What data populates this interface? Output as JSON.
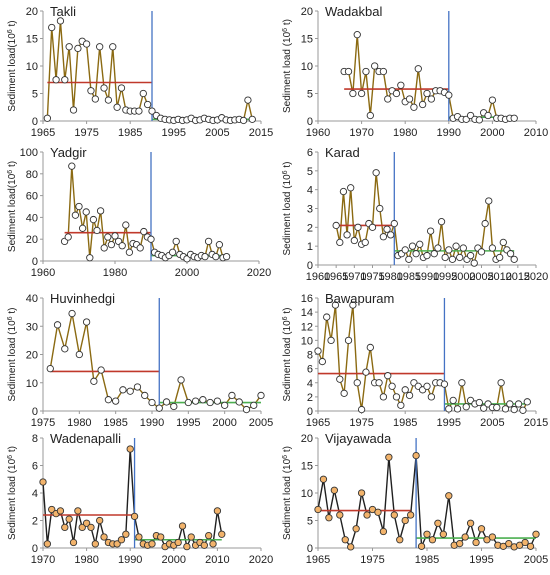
{
  "colors": {
    "series_line": "#8B6A12",
    "series_line_dark": "#202020",
    "marker_edge": "#333333",
    "marker_fill_light": "#ffffff",
    "marker_fill_orange": "#f2b36b",
    "pre_mean_line": "#c0392b",
    "post_mean_line": "#4caf50",
    "change_point_line": "#4472c4",
    "axis": "#999999",
    "text": "#222222"
  },
  "chart_data": [
    {
      "type": "line",
      "title": "Takli",
      "ylabel_main": "Sediment load(10",
      "ylabel_sup": "6",
      "ylabel_tail": " t)",
      "xlim": [
        1965,
        2015
      ],
      "ylim": [
        0,
        20
      ],
      "xticks": [
        1965,
        1975,
        1985,
        1995,
        2005,
        2015
      ],
      "yticks": [
        0,
        5,
        10,
        15,
        20
      ],
      "marker_style": "open",
      "change_point": 1990,
      "pre_mean": {
        "x": [
          1966,
          1990
        ],
        "y": 7
      },
      "post_mean": {
        "x": [
          1990,
          2013
        ],
        "y": 0.3
      },
      "x": [
        1966,
        1967,
        1968,
        1969,
        1970,
        1971,
        1972,
        1973,
        1974,
        1975,
        1976,
        1977,
        1978,
        1979,
        1980,
        1981,
        1982,
        1983,
        1984,
        1985,
        1986,
        1987,
        1988,
        1989,
        1990,
        1991,
        1992,
        1993,
        1994,
        1995,
        1996,
        1997,
        1998,
        1999,
        2000,
        2001,
        2002,
        2003,
        2004,
        2005,
        2006,
        2007,
        2008,
        2009,
        2010,
        2011,
        2012,
        2013
      ],
      "y": [
        0.5,
        17,
        7.5,
        18.2,
        7.5,
        13.5,
        2,
        13.2,
        14.5,
        14,
        5.5,
        4,
        13.5,
        6,
        3.8,
        13.5,
        2.5,
        6,
        2,
        1.8,
        1.8,
        1.8,
        5,
        3,
        1.8,
        1,
        0.5,
        0.3,
        0.2,
        0.1,
        0.3,
        0.1,
        0.2,
        0.5,
        0.1,
        0.2,
        0.5,
        0.3,
        0.1,
        0.2,
        0.6,
        0.2,
        0.1,
        0.2,
        0.3,
        0.1,
        3.8,
        0.3
      ]
    },
    {
      "type": "line",
      "title": "Wadakbal",
      "ylabel_main": "Sediment load (10",
      "ylabel_sup": "6",
      "ylabel_tail": " t)",
      "xlim": [
        1960,
        2010
      ],
      "ylim": [
        0,
        20
      ],
      "xticks": [
        1960,
        1970,
        1980,
        1990,
        2000,
        2010
      ],
      "yticks": [
        0,
        5,
        10,
        15,
        20
      ],
      "marker_style": "open",
      "change_point": 1990,
      "pre_mean": {
        "x": [
          1966,
          1990
        ],
        "y": 5.8
      },
      "post_mean": {
        "x": [
          1990,
          2005
        ],
        "y": 0.7
      },
      "x": [
        1966,
        1967,
        1968,
        1969,
        1970,
        1971,
        1972,
        1973,
        1974,
        1975,
        1976,
        1977,
        1978,
        1979,
        1980,
        1981,
        1982,
        1983,
        1984,
        1985,
        1986,
        1987,
        1988,
        1989,
        1990,
        1991,
        1992,
        1993,
        1994,
        1995,
        1996,
        1997,
        1998,
        1999,
        2000,
        2001,
        2002,
        2003,
        2004,
        2005
      ],
      "y": [
        9,
        9,
        5,
        15.7,
        5,
        9,
        1,
        10,
        9,
        9,
        4,
        5.5,
        5,
        6.5,
        3.5,
        4,
        2.5,
        9.5,
        3,
        5,
        4,
        5.5,
        5.5,
        5.2,
        4.7,
        0.5,
        0.8,
        0.3,
        0.3,
        1,
        0.3,
        0.2,
        1.5,
        1,
        3.8,
        0.5,
        0.5,
        0.3,
        0.5,
        0.5
      ]
    },
    {
      "type": "line",
      "title": "Yadgir",
      "ylabel_main": "Sediment load(10",
      "ylabel_sup": "6",
      "ylabel_tail": " t)",
      "xlim": [
        1960,
        2020
      ],
      "ylim": [
        0,
        100
      ],
      "xticks": [
        1960,
        1980,
        2000,
        2020
      ],
      "yticks": [
        0,
        20,
        40,
        60,
        80,
        100
      ],
      "marker_style": "open",
      "change_point": 1990,
      "pre_mean": {
        "x": [
          1966,
          1990
        ],
        "y": 26
      },
      "post_mean": {
        "x": [
          1990,
          2011
        ],
        "y": 5
      },
      "x": [
        1966,
        1967,
        1968,
        1969,
        1970,
        1971,
        1972,
        1973,
        1974,
        1975,
        1976,
        1977,
        1978,
        1979,
        1980,
        1981,
        1982,
        1983,
        1984,
        1985,
        1986,
        1987,
        1988,
        1989,
        1990,
        1991,
        1992,
        1993,
        1994,
        1995,
        1996,
        1997,
        1998,
        1999,
        2000,
        2001,
        2002,
        2003,
        2004,
        2005,
        2006,
        2007,
        2008,
        2009,
        2010,
        2011
      ],
      "y": [
        18,
        22,
        87,
        42,
        50,
        30,
        45,
        3,
        38,
        28,
        46,
        12,
        22,
        15,
        23,
        18,
        14,
        33,
        8,
        16,
        15,
        12,
        27,
        22,
        20,
        8,
        6,
        5,
        3,
        5,
        8,
        18,
        6,
        4,
        2,
        6,
        4,
        3,
        5,
        4,
        18,
        6,
        4,
        15,
        3,
        4
      ]
    },
    {
      "type": "line",
      "title": "Karad",
      "ylabel_main": "Sediment load (10",
      "ylabel_sup": "6",
      "ylabel_tail": " t)",
      "xlim": [
        1960,
        2020
      ],
      "ylim": [
        0,
        6
      ],
      "xticks": [
        1960,
        1965,
        1970,
        1975,
        1980,
        1985,
        1990,
        1995,
        2000,
        2005,
        2010,
        2015,
        2020
      ],
      "yticks": [
        0,
        1,
        2,
        3,
        4,
        5,
        6
      ],
      "marker_style": "open",
      "change_point": 1981,
      "pre_mean": {
        "x": [
          1965,
          1981
        ],
        "y": 2.1
      },
      "post_mean": {
        "x": [
          1981,
          2014
        ],
        "y": 0.75
      },
      "x": [
        1965,
        1966,
        1967,
        1968,
        1969,
        1970,
        1971,
        1972,
        1973,
        1974,
        1975,
        1976,
        1977,
        1978,
        1979,
        1980,
        1981,
        1982,
        1983,
        1984,
        1985,
        1986,
        1987,
        1988,
        1989,
        1990,
        1991,
        1992,
        1993,
        1994,
        1995,
        1996,
        1997,
        1998,
        1999,
        2000,
        2001,
        2002,
        2003,
        2004,
        2005,
        2006,
        2007,
        2008,
        2009,
        2010,
        2011,
        2012,
        2013,
        2014
      ],
      "y": [
        2.1,
        1.2,
        3.9,
        1.6,
        4.1,
        1.3,
        2.0,
        1.1,
        1.2,
        2.2,
        2.0,
        4.9,
        3.0,
        1.5,
        1.9,
        1.6,
        2.2,
        0.5,
        0.6,
        0.8,
        0.3,
        1.0,
        0.6,
        1.1,
        0.4,
        0.5,
        1.8,
        0.6,
        0.9,
        2.3,
        0.4,
        0.8,
        0.3,
        1.0,
        0.4,
        0.9,
        0.3,
        0.5,
        0.1,
        0.9,
        0.7,
        2.2,
        3.4,
        0.9,
        0.3,
        0.4,
        1.2,
        0.8,
        0.6,
        0.3
      ]
    },
    {
      "type": "line",
      "title": "Huvinhedgi",
      "ylabel_main": "Sediment load (10",
      "ylabel_sup": "6",
      "ylabel_tail": " t)",
      "xlim": [
        1975,
        2005
      ],
      "ylim": [
        0,
        40
      ],
      "xticks": [
        1975,
        1980,
        1985,
        1990,
        1995,
        2000,
        2005
      ],
      "yticks": [
        0,
        10,
        20,
        30,
        40
      ],
      "marker_style": "open",
      "change_point": 1991,
      "pre_mean": {
        "x": [
          1976,
          1991
        ],
        "y": 14
      },
      "post_mean": {
        "x": [
          1991,
          2005
        ],
        "y": 3
      },
      "x": [
        1976,
        1977,
        1978,
        1979,
        1980,
        1981,
        1982,
        1983,
        1984,
        1985,
        1986,
        1987,
        1988,
        1989,
        1990,
        1991,
        1992,
        1993,
        1994,
        1995,
        1996,
        1997,
        1998,
        1999,
        2000,
        2001,
        2002,
        2003,
        2004,
        2005
      ],
      "y": [
        15,
        30.5,
        22,
        34.5,
        20,
        31.5,
        10.5,
        14.5,
        4,
        3.5,
        7.5,
        7,
        8.5,
        5.5,
        3,
        1,
        3.2,
        1.6,
        11,
        3,
        3.5,
        4,
        3,
        3.5,
        2,
        5.5,
        3.2,
        0.5,
        2,
        5.5
      ]
    },
    {
      "type": "line",
      "title": "Bawapuram",
      "ylabel_main": "Sediment load (10",
      "ylabel_sup": "6",
      "ylabel_tail": " t)",
      "xlim": [
        1965,
        2015
      ],
      "ylim": [
        0,
        16
      ],
      "xticks": [
        1965,
        1975,
        1985,
        1995,
        2005,
        2015
      ],
      "yticks": [
        0,
        2,
        4,
        6,
        8,
        10,
        12,
        14,
        16
      ],
      "marker_style": "open",
      "change_point": 1994,
      "pre_mean": {
        "x": [
          1965,
          1994
        ],
        "y": 5.3
      },
      "post_mean": {
        "x": [
          1994,
          2013
        ],
        "y": 1.0
      },
      "x": [
        1965,
        1966,
        1967,
        1968,
        1969,
        1970,
        1971,
        1972,
        1973,
        1974,
        1975,
        1976,
        1977,
        1978,
        1979,
        1980,
        1981,
        1982,
        1983,
        1984,
        1985,
        1986,
        1987,
        1988,
        1989,
        1990,
        1991,
        1992,
        1993,
        1994,
        1995,
        1996,
        1997,
        1998,
        1999,
        2000,
        2001,
        2002,
        2003,
        2004,
        2005,
        2006,
        2007,
        2008,
        2009,
        2010,
        2011,
        2012,
        2013
      ],
      "y": [
        8.5,
        7,
        13.3,
        10,
        15,
        4.5,
        2.5,
        10,
        15,
        4,
        0.2,
        5.5,
        9,
        4,
        4,
        2,
        5,
        3.5,
        2,
        0.8,
        3,
        2.2,
        4,
        3.5,
        3,
        3.5,
        2,
        4,
        4,
        3.8,
        0.3,
        1.5,
        0.3,
        4,
        0.6,
        1.5,
        1,
        1.2,
        0.4,
        1,
        0.5,
        0.5,
        4,
        0.3,
        1,
        0.2,
        1,
        0.1,
        1.3
      ]
    },
    {
      "type": "line",
      "title": "Wadenapalli",
      "ylabel_main": "Sediment load (10",
      "ylabel_sup": "6",
      "ylabel_tail": " t)",
      "xlim": [
        1970,
        2020
      ],
      "ylim": [
        0,
        8
      ],
      "xticks": [
        1970,
        1980,
        1990,
        2000,
        2010,
        2020
      ],
      "yticks": [
        0,
        2,
        4,
        6,
        8
      ],
      "marker_style": "filled",
      "change_point": 1991,
      "pre_mean": {
        "x": [
          1970,
          1991
        ],
        "y": 2.4
      },
      "post_mean": {
        "x": [
          1991,
          2011
        ],
        "y": 0.6
      },
      "x": [
        1970,
        1971,
        1972,
        1973,
        1974,
        1975,
        1976,
        1977,
        1978,
        1979,
        1980,
        1981,
        1982,
        1983,
        1984,
        1985,
        1986,
        1987,
        1988,
        1989,
        1990,
        1991,
        1992,
        1993,
        1994,
        1995,
        1996,
        1997,
        1998,
        1999,
        2000,
        2001,
        2002,
        2003,
        2004,
        2005,
        2006,
        2007,
        2008,
        2009,
        2010,
        2011
      ],
      "y": [
        4.8,
        0.3,
        2.8,
        2.5,
        2.7,
        1.5,
        2.1,
        0.4,
        2.7,
        1.5,
        1.8,
        1.5,
        0.3,
        2.0,
        0.8,
        0.4,
        0.3,
        0.3,
        0.6,
        1.0,
        7.2,
        2.3,
        0.8,
        0.3,
        0.2,
        0.3,
        0.9,
        0.8,
        0.1,
        0.3,
        0.2,
        0.4,
        1.6,
        0.1,
        0.8,
        0.2,
        0.4,
        0.2,
        0.9,
        0.3,
        2.7,
        1.0
      ]
    },
    {
      "type": "line",
      "title": "Vijayawada",
      "ylabel_main": "Sediment load (10",
      "ylabel_sup": "6",
      "ylabel_tail": " t)",
      "xlim": [
        1965,
        2005
      ],
      "ylim": [
        0,
        20
      ],
      "xticks": [
        1965,
        1975,
        1985,
        1995,
        2005
      ],
      "yticks": [
        0,
        5,
        10,
        15,
        20
      ],
      "marker_style": "filled",
      "change_point": 1983,
      "pre_mean": {
        "x": [
          1965,
          1982
        ],
        "y": 6.8
      },
      "post_mean": {
        "x": [
          1983,
          2005
        ],
        "y": 1.8
      },
      "x": [
        1965,
        1966,
        1967,
        1968,
        1969,
        1970,
        1971,
        1972,
        1973,
        1974,
        1975,
        1976,
        1977,
        1978,
        1979,
        1980,
        1981,
        1982,
        1983,
        1984,
        1985,
        1986,
        1987,
        1988,
        1989,
        1990,
        1991,
        1992,
        1993,
        1994,
        1995,
        1996,
        1997,
        1998,
        1999,
        2000,
        2001,
        2002,
        2003,
        2004,
        2005
      ],
      "y": [
        7,
        12.5,
        5.5,
        10.5,
        6,
        1.5,
        0.2,
        3.5,
        10,
        6,
        7,
        6.5,
        3,
        16.5,
        6,
        1.5,
        5,
        6,
        16.8,
        0.3,
        2.5,
        1.5,
        4.5,
        2.5,
        9.5,
        0.5,
        0.8,
        2,
        4.5,
        1,
        3.5,
        1.5,
        2,
        0.5,
        0.3,
        0.8,
        0.2,
        0.5,
        1,
        0.3,
        2.5
      ]
    }
  ]
}
